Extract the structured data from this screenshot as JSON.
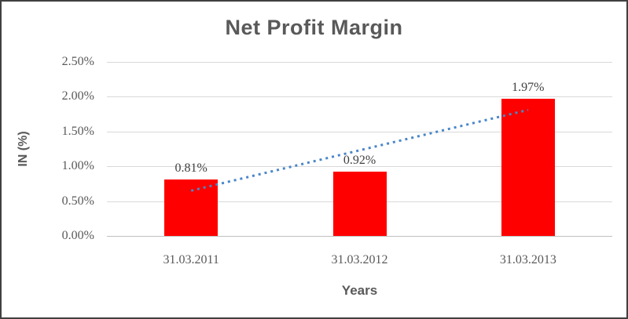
{
  "chart_data": {
    "type": "bar",
    "title": "Net Profit Margin",
    "xlabel": "Years",
    "ylabel": "IN (%)",
    "categories": [
      "31.03.2011",
      "31.03.2012",
      "31.03.2013"
    ],
    "values": [
      0.81,
      0.92,
      1.97
    ],
    "data_labels": [
      "0.81%",
      "0.92%",
      "1.97%"
    ],
    "y_ticks": [
      {
        "label": "0.00%",
        "value": 0.0
      },
      {
        "label": "0.50%",
        "value": 0.5
      },
      {
        "label": "1.00%",
        "value": 1.0
      },
      {
        "label": "1.50%",
        "value": 1.5
      },
      {
        "label": "2.00%",
        "value": 2.0
      },
      {
        "label": "2.50%",
        "value": 2.5
      }
    ],
    "ylim": [
      0,
      2.5
    ],
    "grid": true,
    "legend": "none",
    "bar_color": "#ff0000",
    "gridline_color": "#d9d9d9",
    "axis_line_color": "#bfbfbf",
    "tick_text_color": "#595959",
    "data_label_color": "#404040",
    "title_color": "#595959",
    "trendline": {
      "type": "linear",
      "style": "dotted",
      "color": "#4a86c8",
      "start_value": 0.65,
      "end_value": 1.81
    }
  }
}
